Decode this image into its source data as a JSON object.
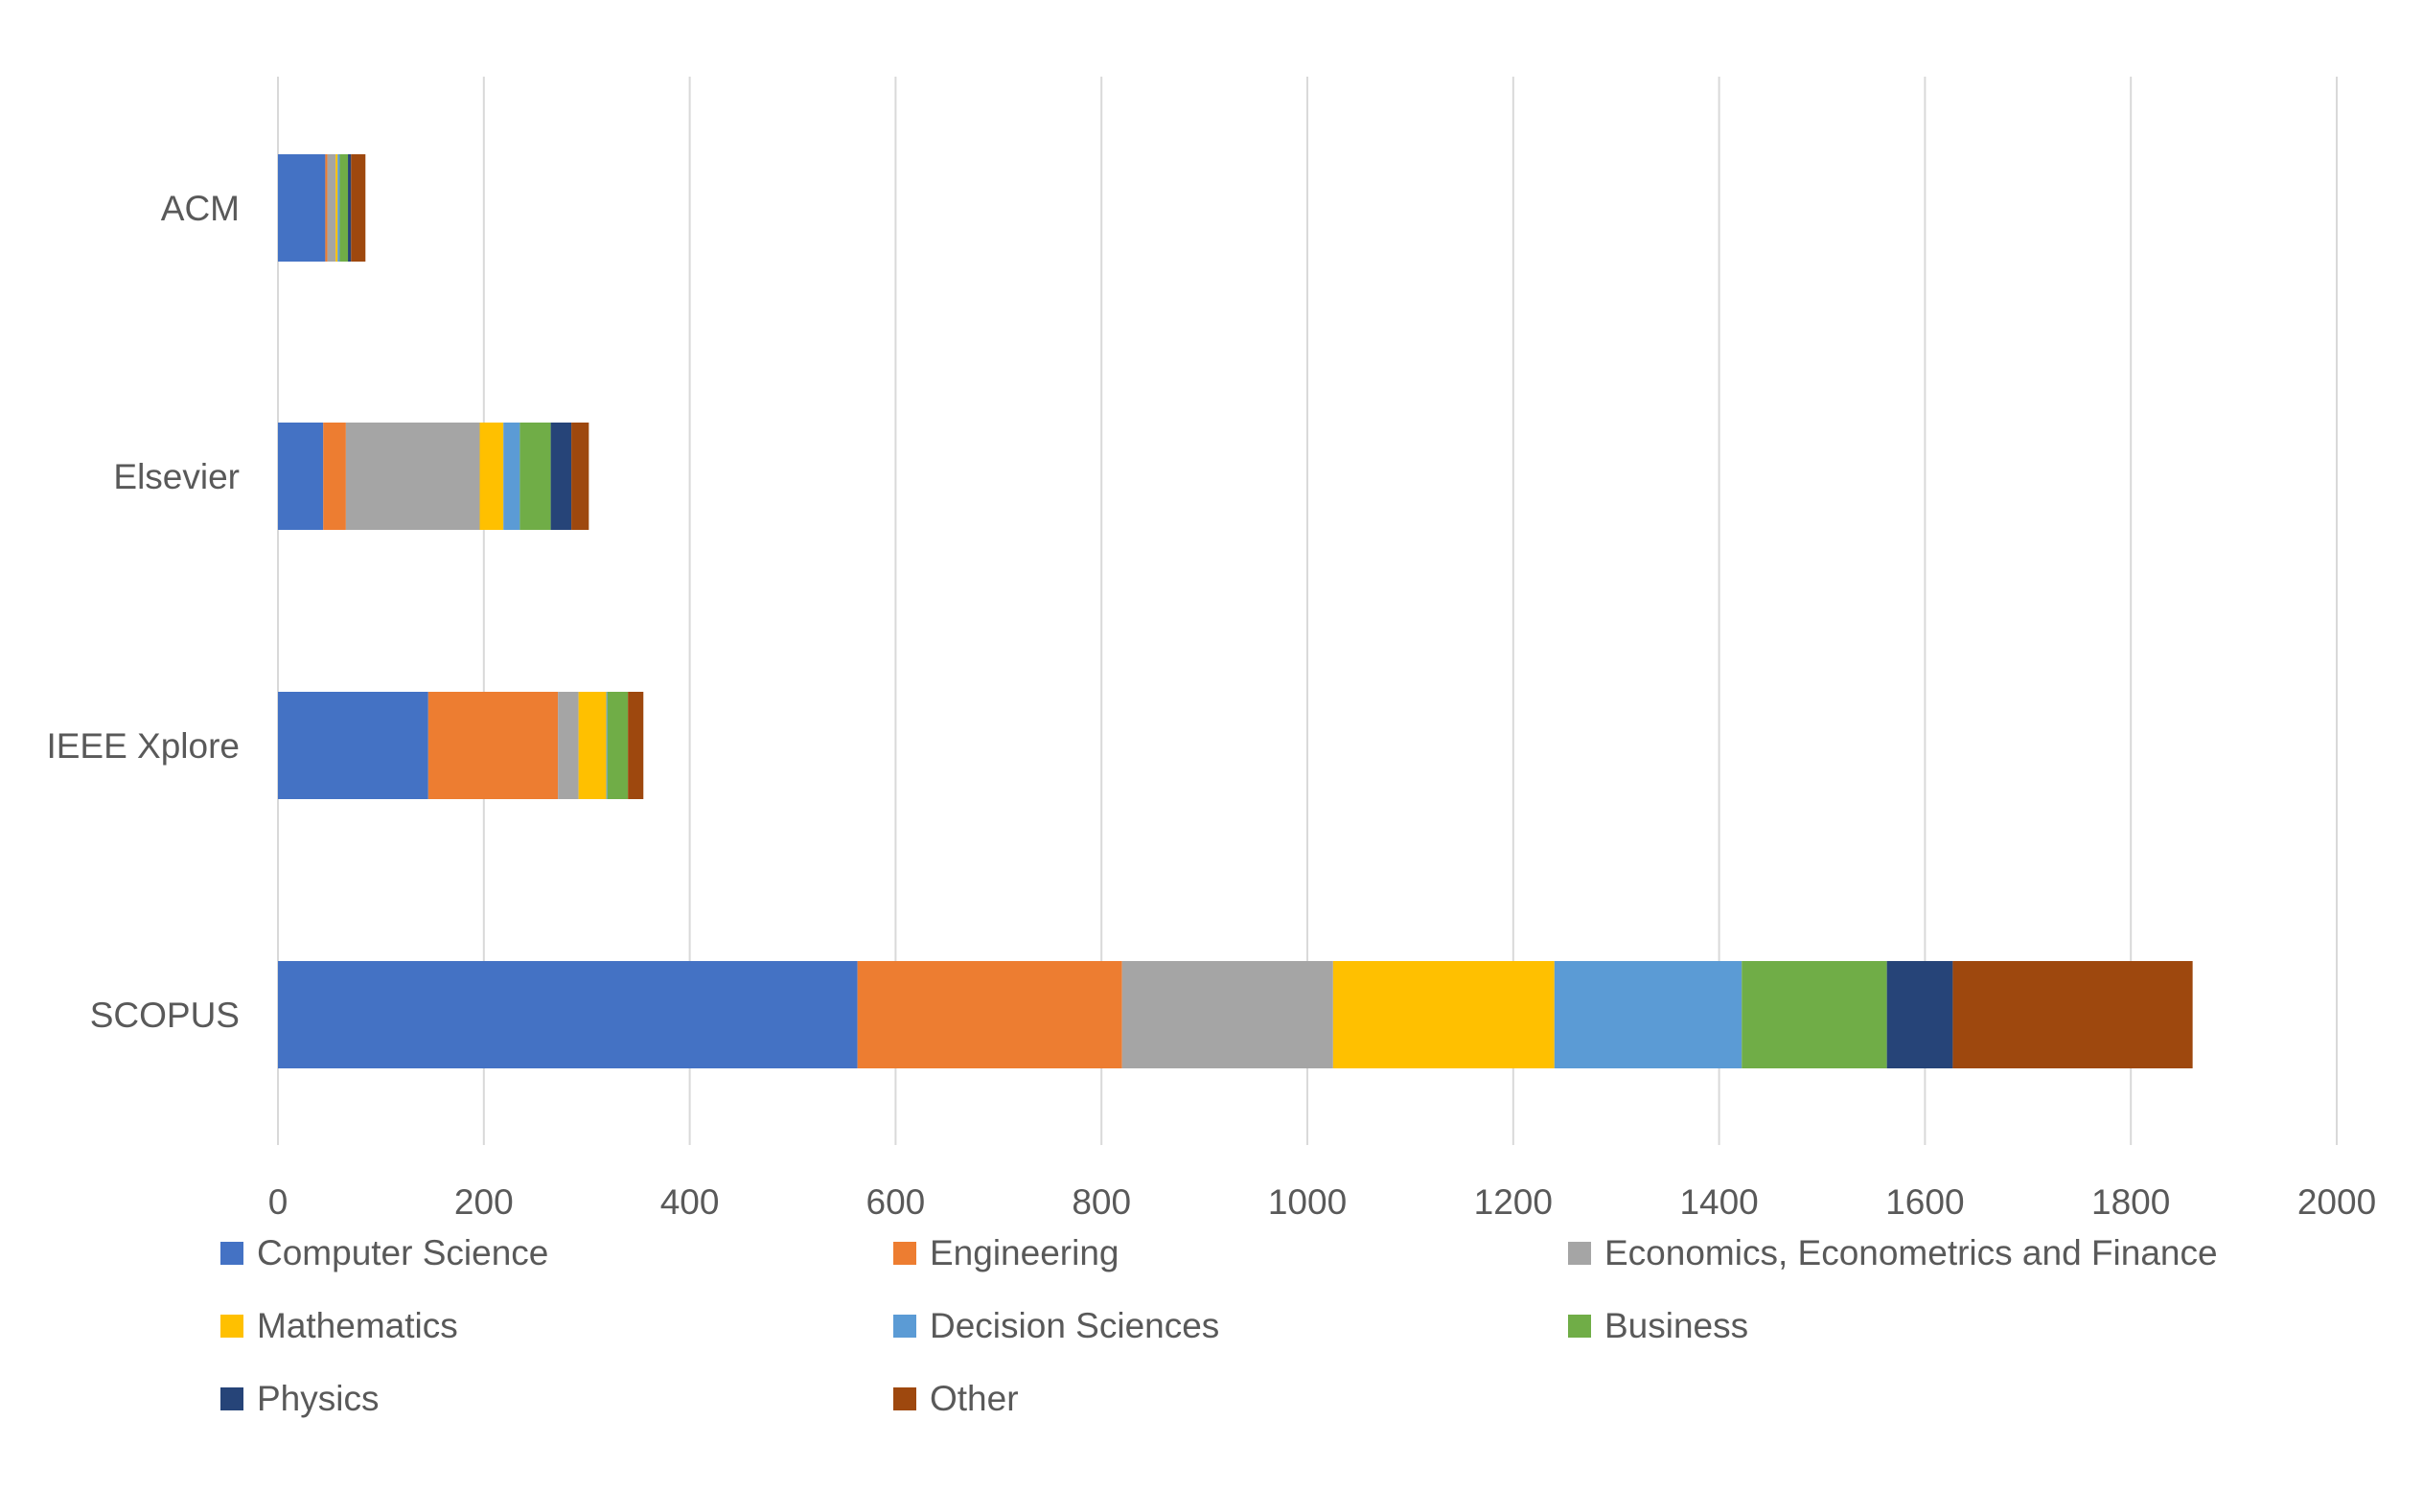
{
  "chart_data": {
    "type": "bar",
    "orientation": "horizontal",
    "stacked": true,
    "categories": [
      "ACM",
      "Elsevier",
      "IEEE Xplore",
      "SCOPUS"
    ],
    "series": [
      {
        "name": "Computer Science",
        "color": "#4472C4",
        "values": [
          46,
          44,
          146,
          563
        ]
      },
      {
        "name": "Engineering",
        "color": "#ED7D31",
        "values": [
          2,
          22,
          126,
          257
        ]
      },
      {
        "name": "Economics, Econometrics and Finance",
        "color": "#A5A5A5",
        "values": [
          8,
          130,
          20,
          205
        ]
      },
      {
        "name": "Mathematics",
        "color": "#FFC000",
        "values": [
          2,
          23,
          27,
          215
        ]
      },
      {
        "name": "Decision Sciences",
        "color": "#5B9BD5",
        "values": [
          2,
          16,
          1,
          182
        ]
      },
      {
        "name": "Business",
        "color": "#70AD47",
        "values": [
          8,
          30,
          20,
          141
        ]
      },
      {
        "name": "Physics",
        "color": "#264478",
        "values": [
          3,
          20,
          0,
          64
        ]
      },
      {
        "name": "Other",
        "color": "#9E480E",
        "values": [
          14,
          17,
          15,
          233
        ]
      }
    ],
    "xlim": [
      0,
      2000
    ],
    "x_ticks": [
      "0",
      "200",
      "400",
      "600",
      "800",
      "1000",
      "1200",
      "1400",
      "1600",
      "1800",
      "2000"
    ],
    "title": "",
    "xlabel": "",
    "ylabel": "",
    "grid": "vertical",
    "legend_position": "bottom"
  }
}
